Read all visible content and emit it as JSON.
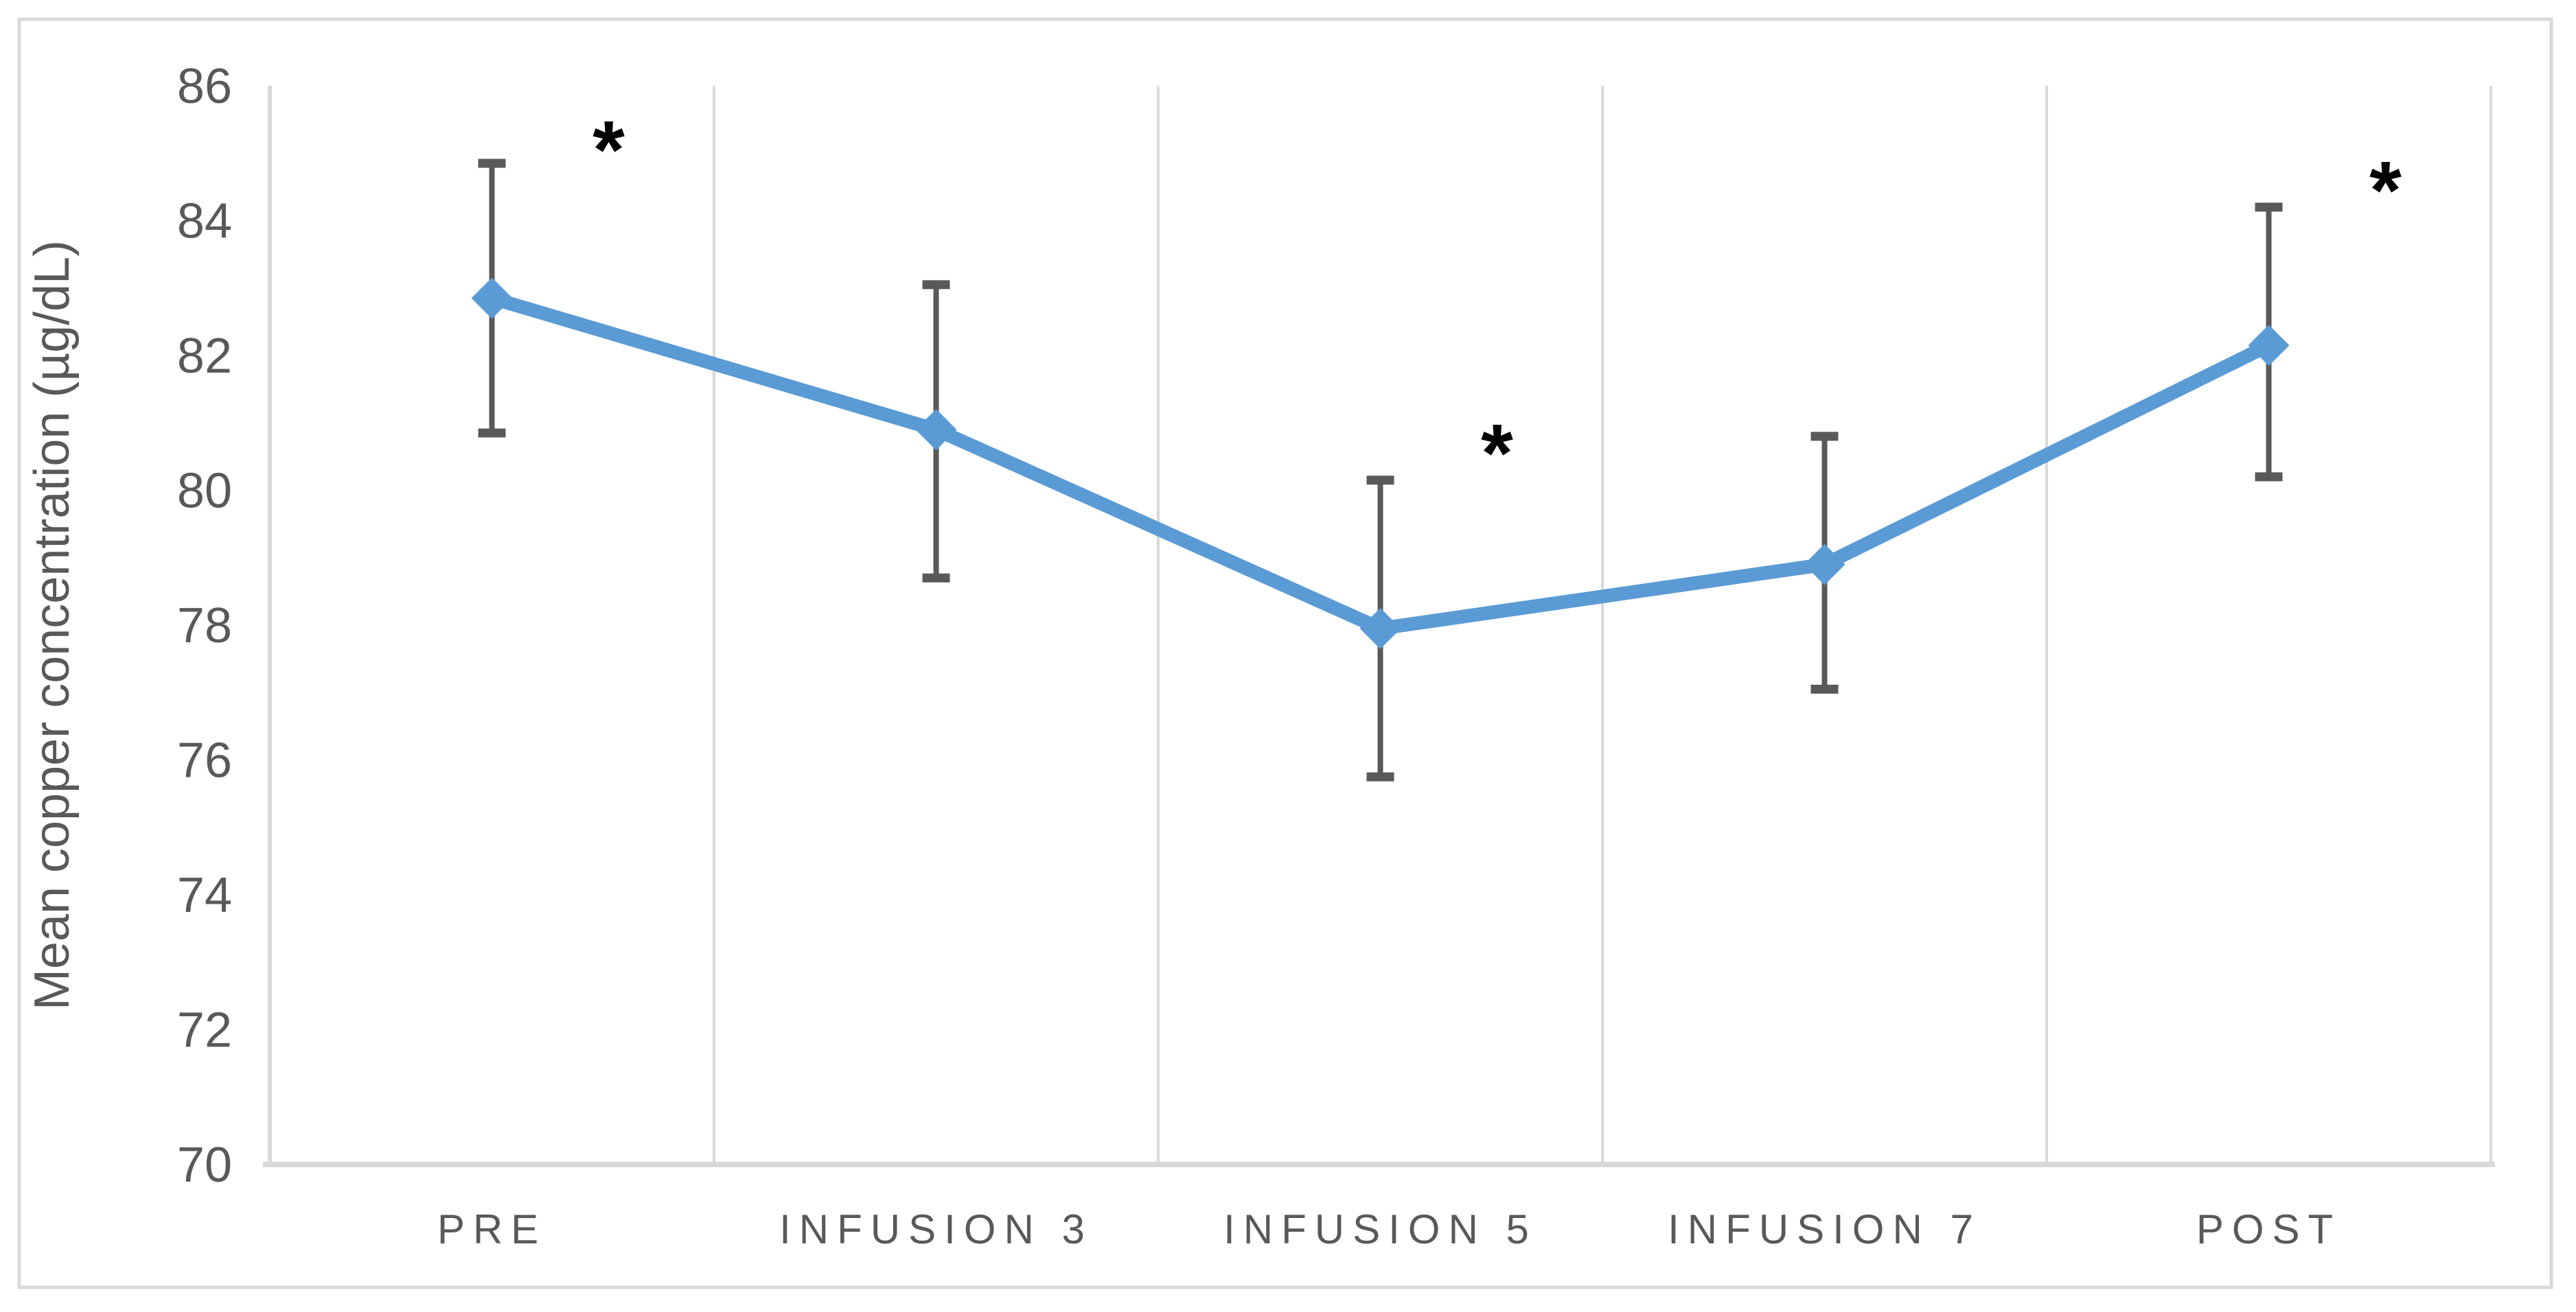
{
  "chart_data": {
    "type": "line",
    "title": "",
    "categories": [
      "PRE",
      "INFUSION 3",
      "INFUSION 5",
      "INFUSION 7",
      "POST"
    ],
    "series": [
      {
        "name": "Mean copper concentration",
        "values": [
          82.85,
          80.9,
          77.95,
          78.9,
          82.15
        ],
        "error_upper": [
          84.85,
          83.05,
          80.15,
          80.8,
          84.2
        ],
        "error_lower": [
          80.85,
          78.7,
          75.75,
          77.05,
          80.2
        ]
      }
    ],
    "significance": [
      {
        "category": "PRE",
        "symbol": "*",
        "value": 85.1
      },
      {
        "category": "INFUSION 5",
        "symbol": "*",
        "value": 80.6
      },
      {
        "category": "POST",
        "symbol": "*",
        "value": 84.5
      }
    ],
    "xlabel": "",
    "ylabel": "Mean copper concentration (µg/dL)",
    "ylim": [
      70,
      86
    ],
    "yticks": [
      86,
      84,
      82,
      80,
      78,
      76,
      74,
      72,
      70
    ],
    "grid": "vertical-category-separators",
    "legend": "none",
    "marker": "diamond",
    "colors": {
      "series": "#5B9BD5",
      "error_bar": "#595959",
      "axis_text": "#595959",
      "gridline": "#D9D9D9",
      "border": "#D9D9D9",
      "significance": "#000000",
      "background": "#FFFFFF"
    }
  }
}
